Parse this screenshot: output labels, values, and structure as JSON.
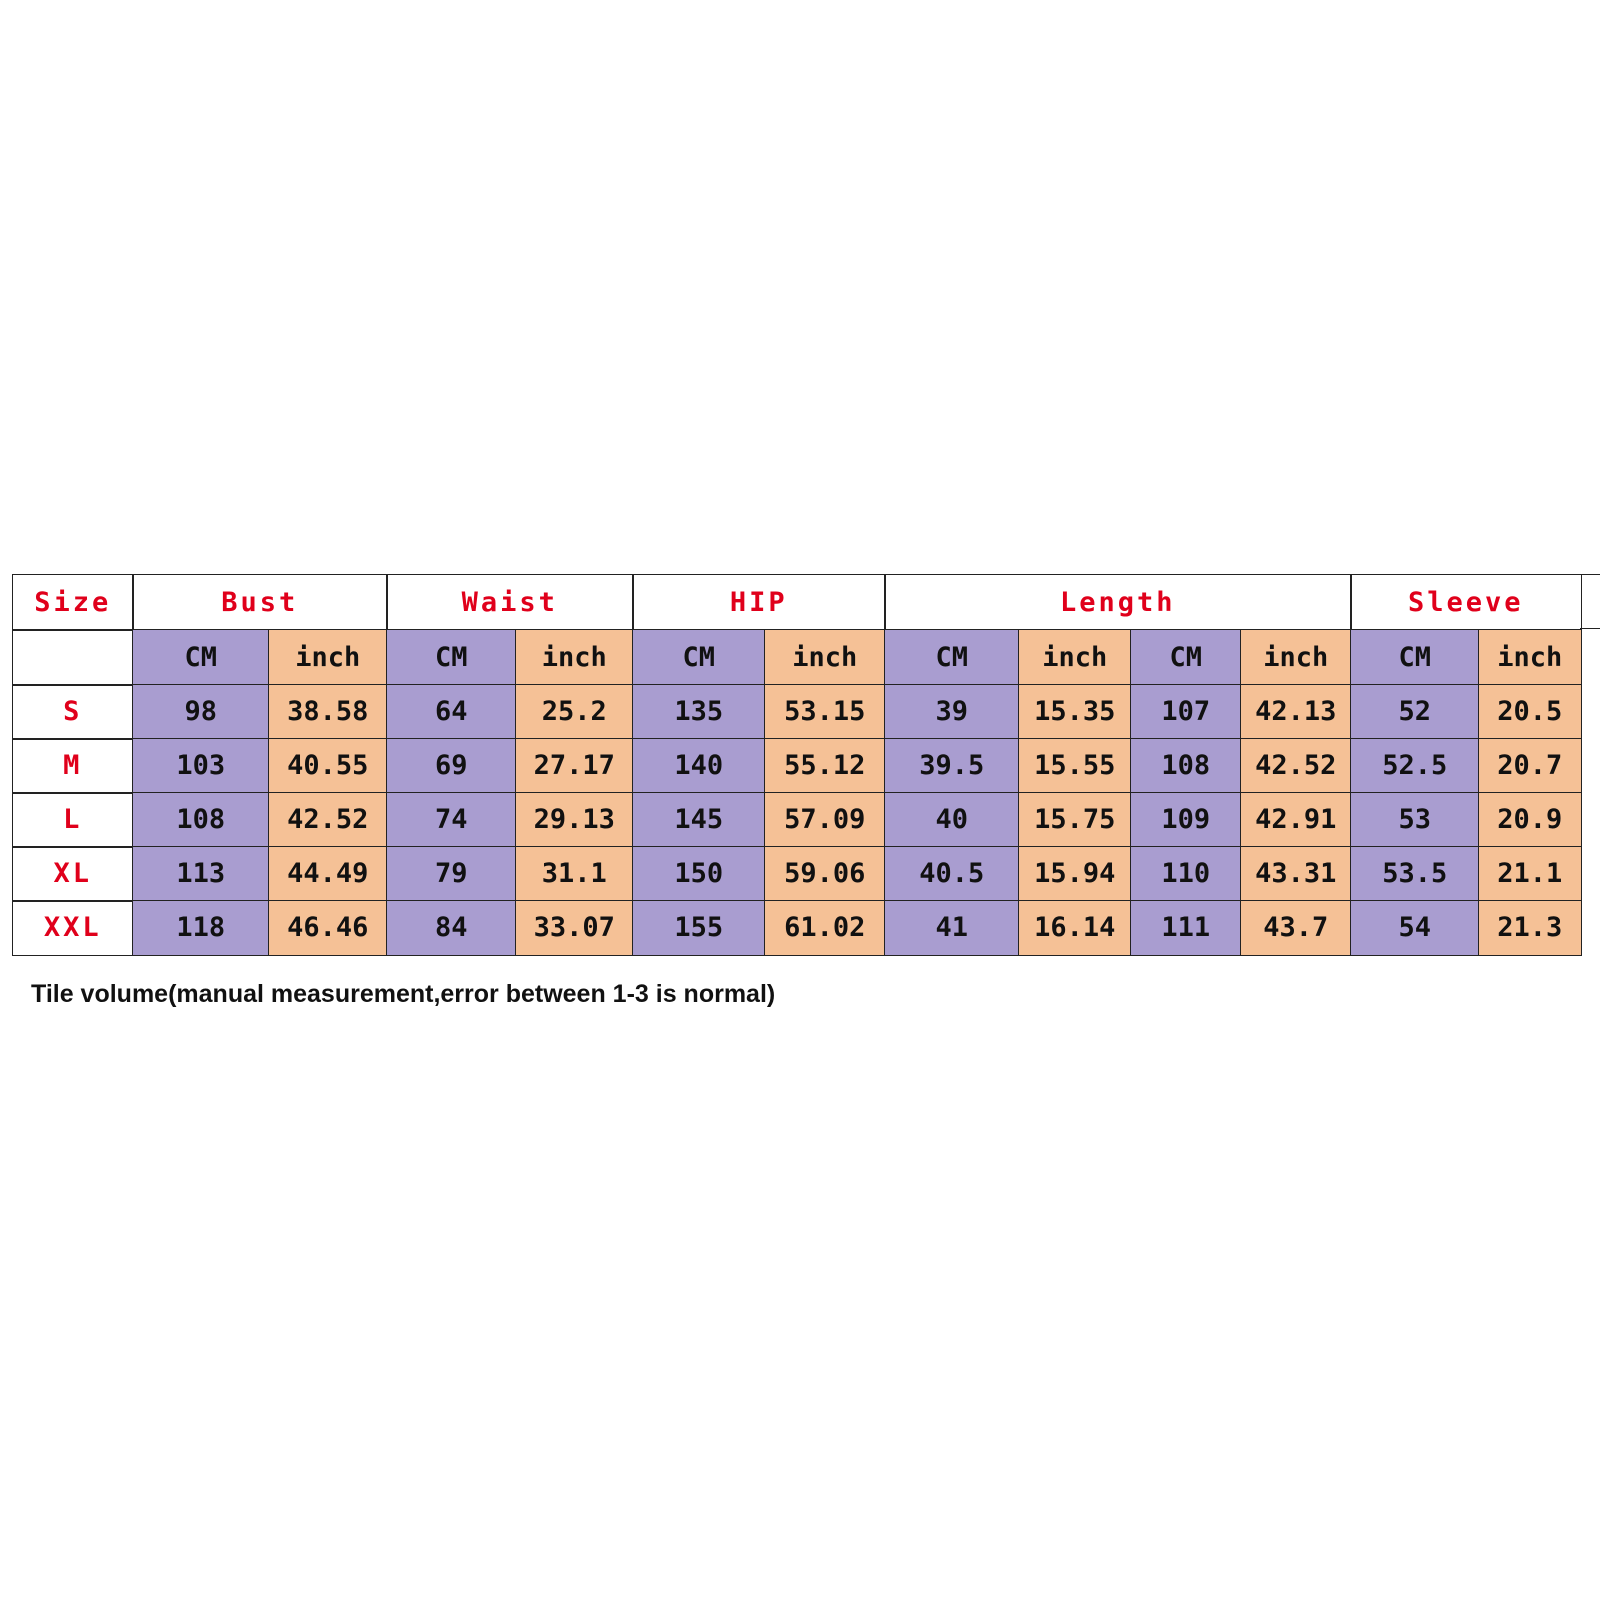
{
  "table": {
    "header": [
      "Size",
      "Bust",
      "Waist",
      "HIP",
      "Length",
      "Sleeve"
    ],
    "units": [
      "CM",
      "inch",
      "CM",
      "inch",
      "CM",
      "inch",
      "CM",
      "inch",
      "CM",
      "inch",
      "CM",
      "inch"
    ],
    "rows": [
      [
        "S",
        98,
        38.58,
        64,
        25.2,
        135,
        53.15,
        39,
        15.35,
        107,
        42.13,
        52,
        20.5
      ],
      [
        "M",
        103,
        40.55,
        69,
        27.17,
        140,
        55.12,
        39.5,
        15.55,
        108,
        42.52,
        52.5,
        20.7
      ],
      [
        "L",
        108,
        42.52,
        74,
        29.13,
        145,
        57.09,
        40,
        15.75,
        109,
        42.91,
        53,
        20.9
      ],
      [
        "XL",
        113,
        44.49,
        79,
        31.1,
        150,
        59.06,
        40.5,
        15.94,
        110,
        43.31,
        53.5,
        21.1
      ],
      [
        "XXL",
        118,
        46.46,
        84,
        33.07,
        155,
        61.02,
        41,
        16.14,
        111,
        43.7,
        54,
        21.3
      ]
    ]
  },
  "note": "Tile volume(manual measurement,error between 1-3 is normal)"
}
